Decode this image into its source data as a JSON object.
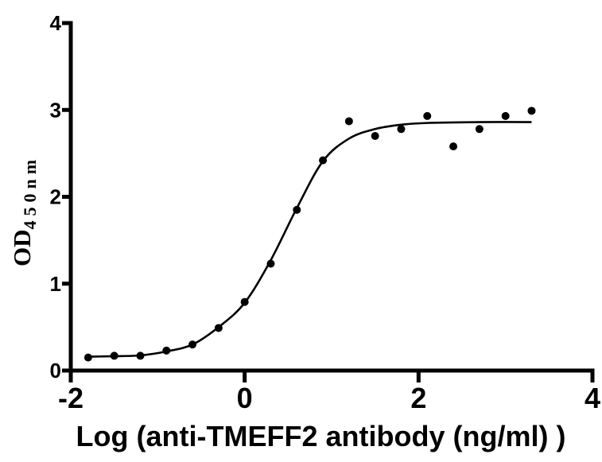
{
  "figure": {
    "background": "#ffffff"
  },
  "chart_data": {
    "type": "scatter",
    "title": "",
    "xlabel": "Log (anti-TMEFF2 antibody (ng/ml) )",
    "ylabel_main": "OD",
    "ylabel_sub": "450nm",
    "xlim": [
      -2,
      4
    ],
    "ylim": [
      0,
      4
    ],
    "x_ticks": [
      -2,
      0,
      2,
      4
    ],
    "y_ticks": [
      0,
      1,
      2,
      3,
      4
    ],
    "grid": false,
    "legend": "none",
    "marker": "filled-circle",
    "marker_color": "#000000",
    "line_color": "#000000",
    "axis_color": "#000000",
    "points": [
      [
        -1.8,
        0.15
      ],
      [
        -1.5,
        0.17
      ],
      [
        -1.2,
        0.17
      ],
      [
        -0.9,
        0.23
      ],
      [
        -0.6,
        0.3
      ],
      [
        -0.3,
        0.49
      ],
      [
        0.0,
        0.79
      ],
      [
        0.3,
        1.23
      ],
      [
        0.6,
        1.85
      ],
      [
        0.9,
        2.42
      ],
      [
        1.2,
        2.87
      ],
      [
        1.5,
        2.7
      ],
      [
        1.8,
        2.78
      ],
      [
        2.1,
        2.93
      ],
      [
        2.4,
        2.58
      ],
      [
        2.7,
        2.78
      ],
      [
        3.0,
        2.93
      ],
      [
        3.3,
        2.99
      ]
    ],
    "fit_curve": {
      "points": [
        [
          -1.82,
          0.16
        ],
        [
          -1.5,
          0.165
        ],
        [
          -1.2,
          0.175
        ],
        [
          -0.9,
          0.22
        ],
        [
          -0.6,
          0.3
        ],
        [
          -0.3,
          0.5
        ],
        [
          0.0,
          0.78
        ],
        [
          0.3,
          1.27
        ],
        [
          0.6,
          1.87
        ],
        [
          0.9,
          2.41
        ],
        [
          1.2,
          2.67
        ],
        [
          1.5,
          2.78
        ],
        [
          1.8,
          2.83
        ],
        [
          2.1,
          2.85
        ],
        [
          2.7,
          2.86
        ],
        [
          3.3,
          2.86
        ]
      ]
    }
  }
}
